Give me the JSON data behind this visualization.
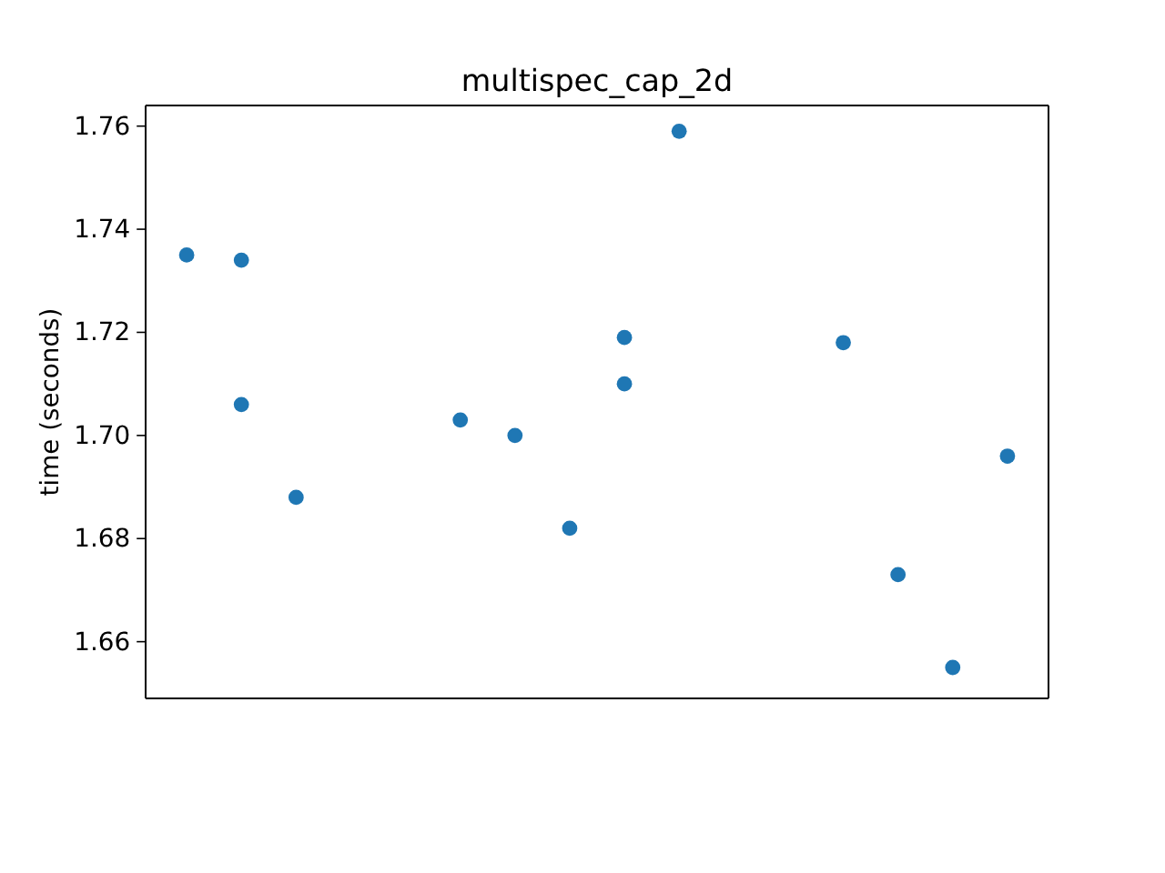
{
  "chart_data": {
    "type": "scatter",
    "title": "multispec_cap_2d",
    "ylabel": "time (seconds)",
    "categories": [
      null,
      null,
      null,
      null,
      null,
      null,
      null,
      null,
      null,
      null,
      null,
      null,
      null,
      null,
      null,
      null
    ],
    "series": [
      {
        "color": "#1f77b4",
        "values": [
          1.735,
          1.734,
          1.688,
          null,
          null,
          1.703,
          1.7,
          1.682,
          1.719,
          1.759,
          null,
          null,
          1.718,
          1.673,
          1.655,
          1.696
        ]
      },
      {
        "color": "#1f77b4",
        "values": [
          null,
          1.706,
          null,
          null,
          null,
          null,
          null,
          null,
          1.71,
          null,
          null,
          null,
          null,
          null,
          null,
          null
        ]
      }
    ],
    "ylim": [
      1.649,
      1.764
    ],
    "yticks": [
      {
        "value": 1.66,
        "label": "1.66"
      },
      {
        "value": 1.68,
        "label": "1.68"
      },
      {
        "value": 1.7,
        "label": "1.70"
      },
      {
        "value": 1.72,
        "label": "1.72"
      },
      {
        "value": 1.74,
        "label": "1.74"
      },
      {
        "value": 1.76,
        "label": "1.76"
      }
    ],
    "tick_labels": "y",
    "marker": "circle",
    "grid": false
  }
}
